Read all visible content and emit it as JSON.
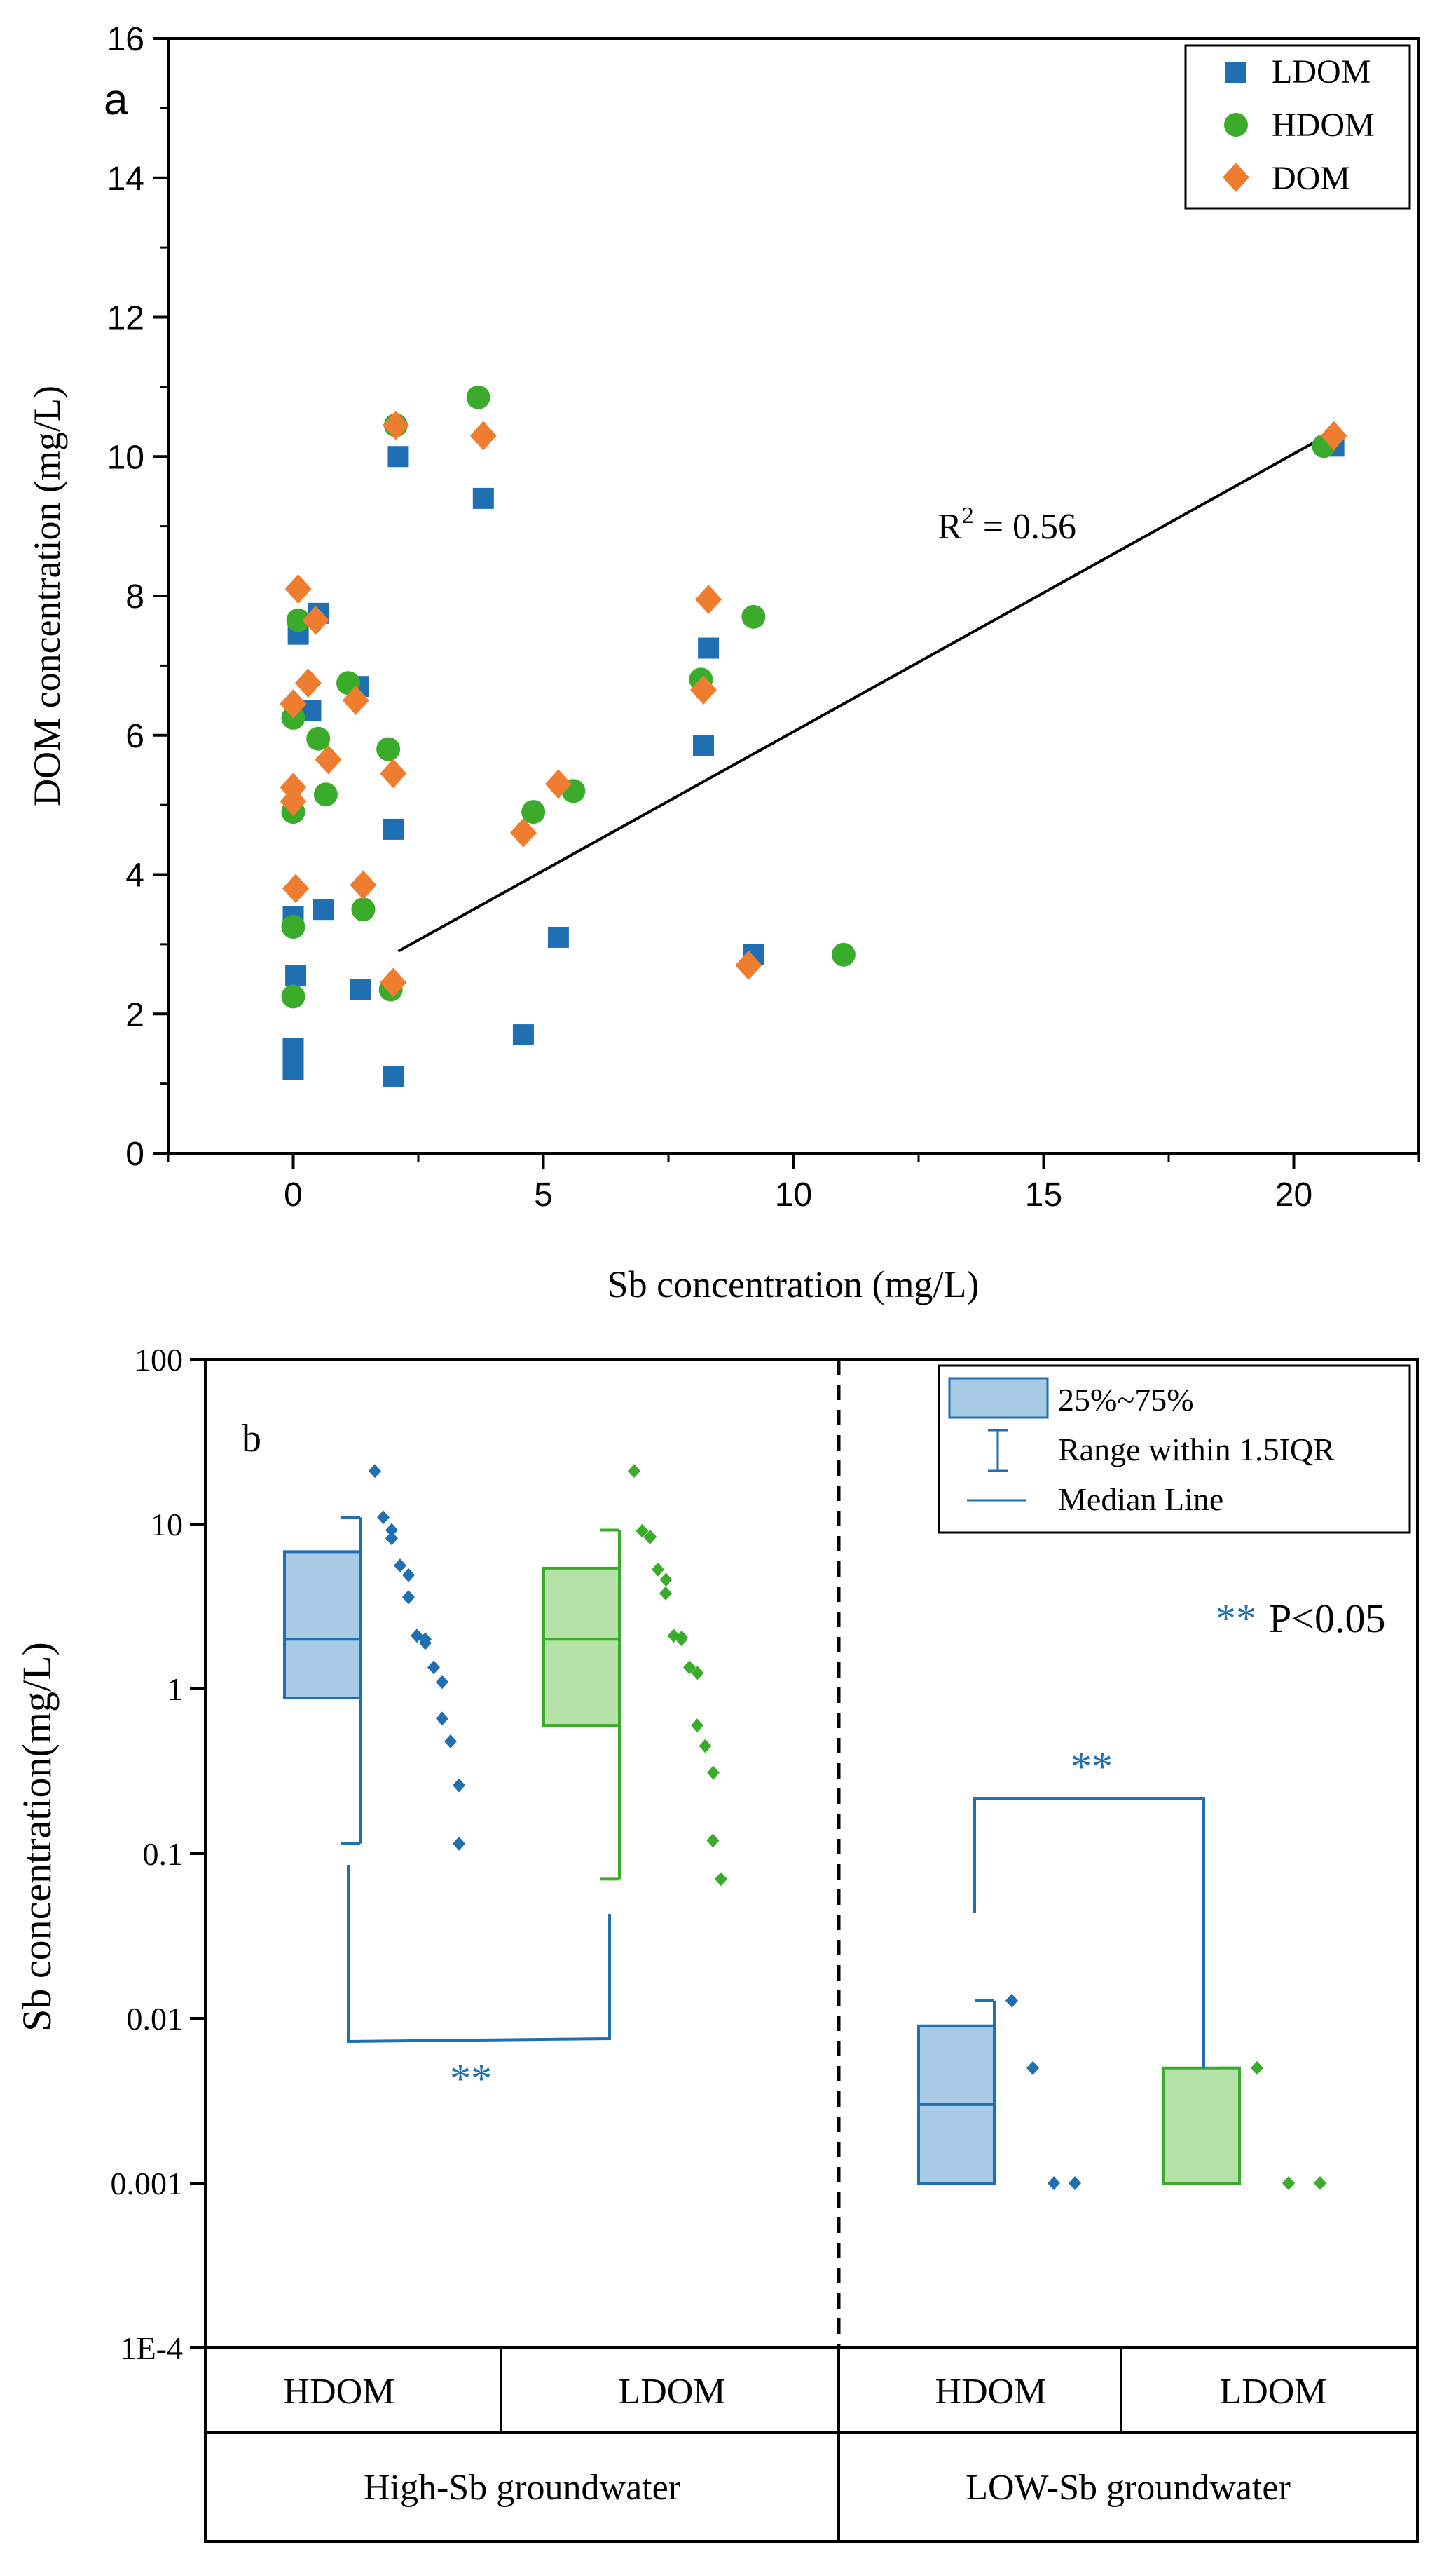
{
  "chart_data": [
    {
      "type": "scatter",
      "panel_label": "a",
      "xlabel": "Sb concentration (mg/L)",
      "ylabel": "DOM concentration (mg/L)",
      "xlim": [
        -2.5,
        22.5
      ],
      "ylim": [
        0,
        16
      ],
      "x_ticks": [
        0,
        5,
        10,
        15,
        20
      ],
      "y_ticks": [
        0,
        2,
        4,
        6,
        8,
        10,
        12,
        14,
        16
      ],
      "legend": {
        "position": "top-right",
        "entries": [
          "LDOM",
          "HDOM",
          "DOM"
        ]
      },
      "annotation": {
        "base": "R",
        "sup": "2",
        "rest": " = 0.56"
      },
      "fit_line": {
        "x": [
          2.1,
          20.4
        ],
        "y": [
          2.9,
          10.2
        ]
      },
      "colors": {
        "LDOM": "#1f6fb2",
        "HDOM": "#3aab2a",
        "DOM": "#ee7d30"
      },
      "series": [
        {
          "name": "LDOM",
          "marker": "square",
          "points": [
            [
              0,
              1.2
            ],
            [
              0,
              1.3
            ],
            [
              0,
              1.5
            ],
            [
              0.05,
              2.55
            ],
            [
              0,
              3.4
            ],
            [
              0.1,
              7.45
            ],
            [
              0.35,
              6.35
            ],
            [
              0.5,
              7.75
            ],
            [
              0.6,
              3.5
            ],
            [
              1.35,
              2.35
            ],
            [
              1.3,
              6.7
            ],
            [
              2,
              1.1
            ],
            [
              2,
              4.65
            ],
            [
              2.1,
              10
            ],
            [
              3.8,
              9.4
            ],
            [
              4.6,
              1.7
            ],
            [
              5.3,
              3.1
            ],
            [
              8.2,
              5.85
            ],
            [
              8.3,
              7.25
            ],
            [
              9.2,
              2.85
            ],
            [
              20.8,
              10.15
            ]
          ]
        },
        {
          "name": "HDOM",
          "marker": "circle",
          "points": [
            [
              0,
              2.25
            ],
            [
              0,
              3.25
            ],
            [
              0,
              4.9
            ],
            [
              0,
              6.25
            ],
            [
              0.1,
              7.65
            ],
            [
              0.5,
              5.95
            ],
            [
              0.65,
              5.15
            ],
            [
              1.1,
              6.75
            ],
            [
              1.4,
              3.5
            ],
            [
              1.9,
              5.8
            ],
            [
              1.95,
              2.35
            ],
            [
              2.05,
              10.45
            ],
            [
              3.7,
              10.85
            ],
            [
              4.8,
              4.9
            ],
            [
              5.6,
              5.2
            ],
            [
              8.15,
              6.8
            ],
            [
              9.2,
              7.7
            ],
            [
              11,
              2.85
            ],
            [
              20.6,
              10.15
            ]
          ]
        },
        {
          "name": "DOM",
          "marker": "diamond",
          "points": [
            [
              0.05,
              3.8
            ],
            [
              0,
              5.05
            ],
            [
              0,
              5.25
            ],
            [
              0,
              6.45
            ],
            [
              0.1,
              8.1
            ],
            [
              0.3,
              6.75
            ],
            [
              0.45,
              7.65
            ],
            [
              0.7,
              5.65
            ],
            [
              1.25,
              6.5
            ],
            [
              1.4,
              3.85
            ],
            [
              2,
              2.45
            ],
            [
              2,
              5.45
            ],
            [
              2.05,
              10.45
            ],
            [
              3.8,
              10.3
            ],
            [
              4.6,
              4.6
            ],
            [
              5.3,
              5.3
            ],
            [
              8.2,
              6.65
            ],
            [
              8.3,
              7.95
            ],
            [
              9.1,
              2.7
            ],
            [
              20.8,
              10.3
            ]
          ]
        }
      ]
    },
    {
      "type": "box",
      "panel_label": "b",
      "ylabel": "Sb concentration(mg/L)",
      "y_scale": "log",
      "ylim": [
        0.0001,
        100
      ],
      "y_ticks": [
        "1E-4",
        "0.001",
        "0.01",
        "0.1",
        "1",
        "10",
        "100"
      ],
      "legend": {
        "position": "top-right",
        "entries": [
          "25%~75%",
          "Range within 1.5IQR",
          "Median Line"
        ]
      },
      "significance_note": {
        "stars": "**",
        "text": "P<0.05"
      },
      "bracket_labels": [
        "**",
        "**"
      ],
      "colors": {
        "HDOM_fill": "#a7cbe4",
        "HDOM_stroke": "#1f6fb2",
        "LDOM_fill": "#b5e2a8",
        "LDOM_stroke": "#3aab2a"
      },
      "categories": [
        {
          "label": "HDOM",
          "group": "High-Sb groundwater",
          "color": "HDOM",
          "q1": 0.88,
          "median": 2.0,
          "q3": 6.8,
          "whisker_low": 0.115,
          "whisker_high": 11.0,
          "points": [
            21,
            11,
            9.2,
            8.2,
            5.6,
            4.9,
            3.6,
            2.1,
            2.0,
            1.9,
            1.35,
            1.1,
            0.66,
            0.48,
            0.26,
            0.115
          ]
        },
        {
          "label": "LDOM",
          "group": "High-Sb groundwater",
          "color": "LDOM",
          "q1": 0.6,
          "median": 2.0,
          "q3": 5.4,
          "whisker_low": 0.07,
          "whisker_high": 9.2,
          "points": [
            21,
            9.1,
            8.4,
            8.3,
            5.3,
            4.6,
            3.8,
            2.1,
            2.05,
            2.0,
            1.35,
            1.25,
            0.6,
            0.45,
            0.31,
            0.12,
            0.07
          ]
        },
        {
          "label": "HDOM",
          "group": "LOW-Sb groundwater",
          "color": "HDOM",
          "q1": 0.001,
          "median": 0.003,
          "q3": 0.009,
          "whisker_low": 0.001,
          "whisker_high": 0.0128,
          "points": [
            0.0128,
            0.005,
            0.001,
            0.001
          ]
        },
        {
          "label": "LDOM",
          "group": "LOW-Sb groundwater",
          "color": "LDOM",
          "q1": 0.001,
          "median": 0.001,
          "q3": 0.005,
          "whisker_low": 0.001,
          "whisker_high": 0.005,
          "points": [
            0.005,
            0.001,
            0.001
          ]
        }
      ],
      "groups": [
        "High-Sb groundwater",
        "LOW-Sb groundwater"
      ]
    }
  ]
}
